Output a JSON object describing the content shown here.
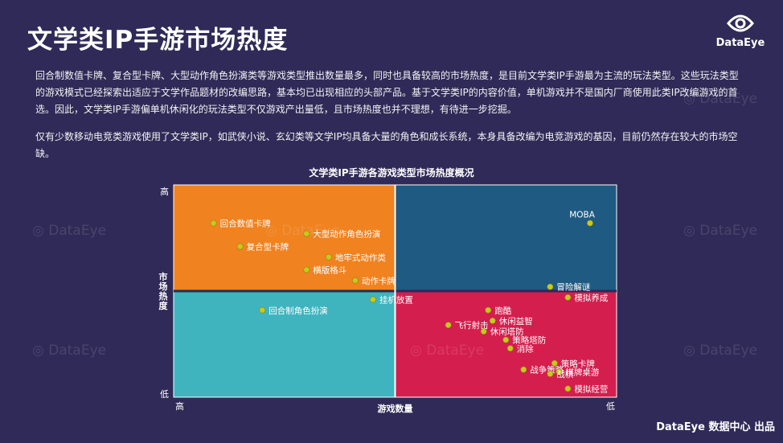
{
  "page": {
    "title": "文学类IP手游市场热度",
    "logo_text": "DataEye",
    "paragraph1": "回合制数值卡牌、复合型卡牌、大型动作角色扮演类等游戏类型推出数量最多，同时也具备较高的市场热度，是目前文学类IP手游最为主流的玩法类型。这些玩法类型的游戏模式已经探索出适应于文学作品题材的改编思路，基本均已出现相应的头部产品。基于文学类IP的内容价值，单机游戏并不是国内厂商使用此类IP改编游戏的首选。因此，文学类IP手游偏单机休闲化的玩法类型不仅游戏产出量低，且市场热度也并不理想，有待进一步挖掘。",
    "paragraph2": "仅有少数移动电竞类游戏使用了文学类IP，如武侠小说、玄幻类等文学IP均具备大量的角色和成长系统，本身具备改编为电竞游戏的基因，目前仍然存在较大的市场空缺。",
    "footer": "DataEye 数据中心 出品",
    "watermark": "DataEye"
  },
  "chart_data": {
    "type": "scatter",
    "title": "文学类IP手游各游戏类型市场热度概况",
    "xlabel": "游戏数量",
    "ylabel": "市场热度",
    "x_tick_labels": {
      "left": "高",
      "right": "低"
    },
    "y_tick_labels": {
      "top": "高",
      "bottom": "低"
    },
    "x_direction": "游戏数量 decreases from left (高) to right (低)",
    "y_direction": "市场热度 increases from bottom (低) to top (高)",
    "quadrant_colors": {
      "top_left": "#f08220",
      "top_right": "#1e5a82",
      "bottom_left": "#3fb4bf",
      "bottom_right": "#d41e4e"
    },
    "point_color": "#c8c81e",
    "points": [
      {
        "name": "回合数值卡牌",
        "x": 0.09,
        "y": 0.82
      },
      {
        "name": "大型动作角色扮演",
        "x": 0.3,
        "y": 0.77
      },
      {
        "name": "复合型卡牌",
        "x": 0.15,
        "y": 0.71
      },
      {
        "name": "地牢式动作类",
        "x": 0.35,
        "y": 0.66
      },
      {
        "name": "横版格斗",
        "x": 0.3,
        "y": 0.6
      },
      {
        "name": "动作卡牌",
        "x": 0.41,
        "y": 0.55
      },
      {
        "name": "MOBA",
        "x": 0.94,
        "y": 0.82
      },
      {
        "name": "冒险解谜",
        "x": 0.85,
        "y": 0.52
      },
      {
        "name": "挂机放置",
        "x": 0.45,
        "y": 0.46
      },
      {
        "name": "回合制角色扮演",
        "x": 0.2,
        "y": 0.41
      },
      {
        "name": "模拟养成",
        "x": 0.89,
        "y": 0.47
      },
      {
        "name": "跑酷",
        "x": 0.71,
        "y": 0.41
      },
      {
        "name": "休闲益智",
        "x": 0.72,
        "y": 0.36
      },
      {
        "name": "飞行射击",
        "x": 0.62,
        "y": 0.34
      },
      {
        "name": "休闲塔防",
        "x": 0.7,
        "y": 0.31
      },
      {
        "name": "策略塔防",
        "x": 0.75,
        "y": 0.27
      },
      {
        "name": "消除",
        "x": 0.76,
        "y": 0.23
      },
      {
        "name": "策略卡牌",
        "x": 0.86,
        "y": 0.16
      },
      {
        "name": "战争策略",
        "x": 0.79,
        "y": 0.13
      },
      {
        "name": "棋牌桌游",
        "x": 0.87,
        "y": 0.12
      },
      {
        "name": "战棋",
        "x": 0.85,
        "y": 0.11
      },
      {
        "name": "模拟经营",
        "x": 0.89,
        "y": 0.04
      }
    ]
  }
}
